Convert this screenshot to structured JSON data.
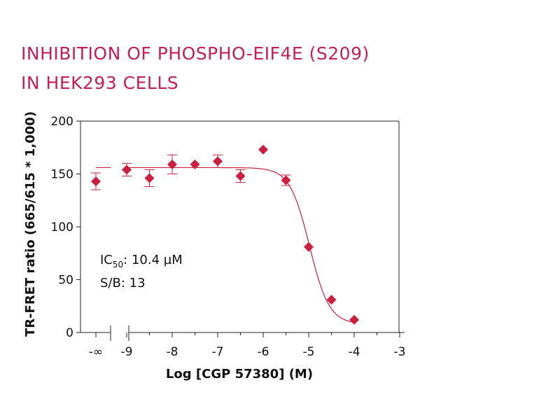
{
  "chart_data": {
    "type": "scatter",
    "title_lines": [
      "INHIBITION OF PHOSPHO-EIF4E (S209)",
      "IN HEK293 CELLS"
    ],
    "xlabel": "Log [CGP 57380] (M)",
    "ylabel": "TR-FRET ratio (665/615 * 1,000)",
    "xlim": [
      -9.5,
      -3
    ],
    "ylim": [
      0,
      200
    ],
    "x_ticks": [
      "-∞",
      "-9",
      "-8",
      "-7",
      "-6",
      "-5",
      "-4",
      "-3"
    ],
    "y_ticks": [
      "0",
      "50",
      "100",
      "150",
      "200"
    ],
    "points": [
      {
        "x": "-∞",
        "y": 143,
        "err": 8
      },
      {
        "x": -9.0,
        "y": 154,
        "err": 6
      },
      {
        "x": -8.5,
        "y": 146,
        "err": 8
      },
      {
        "x": -8.0,
        "y": 159,
        "err": 9
      },
      {
        "x": -7.5,
        "y": 159,
        "err": 0
      },
      {
        "x": -7.0,
        "y": 162,
        "err": 6
      },
      {
        "x": -6.5,
        "y": 148,
        "err": 6
      },
      {
        "x": -6.0,
        "y": 173,
        "err": 0
      },
      {
        "x": -5.5,
        "y": 144,
        "err": 5
      },
      {
        "x": -5.0,
        "y": 81,
        "err": 0
      },
      {
        "x": -4.5,
        "y": 31,
        "err": 0
      },
      {
        "x": -4.0,
        "y": 12,
        "err": 0
      }
    ],
    "fit": {
      "top": 156,
      "bottom": 8,
      "log_ic50": -4.983,
      "hill": 2.0
    },
    "annotations": {
      "ic50_label": "IC",
      "ic50_sub": "50",
      "ic50_value": ": 10.4 µM",
      "sb": "S/B: 13"
    },
    "colors": {
      "marker": "#c8203e",
      "fit": "#c8203e",
      "title": "#c41e5a",
      "axis": "#222222"
    }
  }
}
